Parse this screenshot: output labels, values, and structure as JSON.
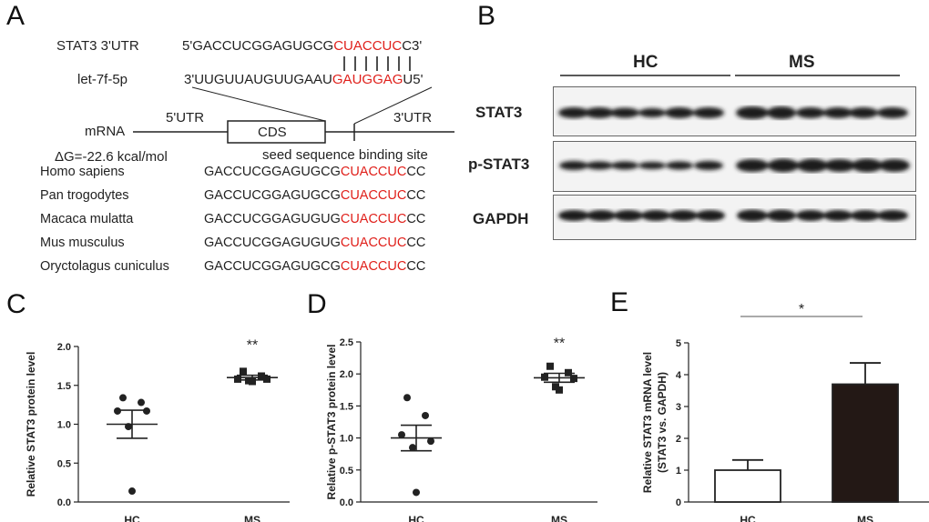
{
  "panels": {
    "a": "A",
    "b": "B",
    "c": "C",
    "d": "D",
    "e": "E"
  },
  "panel_a": {
    "stat3_label": "STAT3 3'UTR",
    "stat3_seq_prefix": "5'GACCUCGGAGUGCG",
    "stat3_seq_red": "CUACCUC",
    "stat3_seq_suffix": "C3'",
    "mirna_label": "let-7f-5p",
    "mirna_seq_prefix": "3'UUGUUAUGUUGAAU",
    "mirna_seq_red": "GAUGGAG",
    "mirna_seq_suffix": "U5'",
    "mrna_label": "mRNA",
    "utr5": "5'UTR",
    "cds": "CDS",
    "utr3": "3'UTR",
    "delta_g": "ΔG=-22.6 kcal/mol",
    "seed_site": "seed sequence binding site",
    "species": [
      {
        "name": "Homo sapiens",
        "prefix": "GACCUCGGAGUGCG",
        "red": "CUACCUC",
        "suffix": "CC"
      },
      {
        "name": "Pan trogodytes",
        "prefix": "GACCUCGGAGUGCG",
        "red": "CUACCUC",
        "suffix": "CC"
      },
      {
        "name": "Macaca mulatta",
        "prefix": "GACCUCGGAGUGUG",
        "red": "CUACCUC",
        "suffix": "CC"
      },
      {
        "name": "Mus musculus",
        "prefix": "GACCUCGGAGUGUG",
        "red": "CUACCUC",
        "suffix": "CC"
      },
      {
        "name": "Oryctolagus cuniculus",
        "prefix": "GACCUCGGAGUGCG",
        "red": "CUACCUC",
        "suffix": "CC"
      }
    ]
  },
  "panel_b": {
    "group_hc": "HC",
    "group_ms": "MS",
    "rows": [
      "STAT3",
      "p-STAT3",
      "GAPDH"
    ]
  },
  "colors": {
    "red": "#e0201b",
    "bar_ms": "#231815"
  },
  "chart_data": [
    {
      "panel": "C",
      "type": "scatter",
      "ylabel": "Relative STAT3 protein level",
      "categories": [
        "HC",
        "MS"
      ],
      "ylim": [
        0.0,
        2.0
      ],
      "yticks": [
        "0.0",
        "0.5",
        "1.0",
        "1.5",
        "2.0"
      ],
      "series": [
        {
          "category": "HC",
          "marker": "circle",
          "points": [
            1.34,
            1.28,
            1.17,
            1.17,
            0.97,
            0.14
          ],
          "mean": 1.0,
          "sem": 0.18
        },
        {
          "category": "MS",
          "marker": "square",
          "points": [
            1.68,
            1.62,
            1.58,
            1.58,
            1.56,
            1.55
          ],
          "mean": 1.6,
          "sem": 0.03
        }
      ],
      "annotation": "**"
    },
    {
      "panel": "D",
      "type": "scatter",
      "ylabel": "Relative p-STAT3 protein level",
      "categories": [
        "HC",
        "MS"
      ],
      "ylim": [
        0.0,
        2.5
      ],
      "yticks": [
        "0.0",
        "0.5",
        "1.0",
        "1.5",
        "2.0",
        "2.5"
      ],
      "series": [
        {
          "category": "HC",
          "marker": "circle",
          "points": [
            1.63,
            1.35,
            1.05,
            0.95,
            0.85,
            0.15
          ],
          "mean": 1.0,
          "sem": 0.2
        },
        {
          "category": "MS",
          "marker": "square",
          "points": [
            2.12,
            2.02,
            1.95,
            1.93,
            1.8,
            1.75
          ],
          "mean": 1.94,
          "sem": 0.07
        }
      ],
      "annotation": "**"
    },
    {
      "panel": "E",
      "type": "bar",
      "ylabel_line1": "Relative STAT3 mRNA level",
      "ylabel_line2": "(STAT3 vs. GAPDH)",
      "categories": [
        "HC",
        "MS"
      ],
      "values": [
        1.0,
        3.7
      ],
      "errors": [
        0.32,
        0.67
      ],
      "ylim": [
        0,
        5
      ],
      "yticks": [
        "0",
        "1",
        "2",
        "3",
        "4",
        "5"
      ],
      "annotation": "*"
    }
  ]
}
